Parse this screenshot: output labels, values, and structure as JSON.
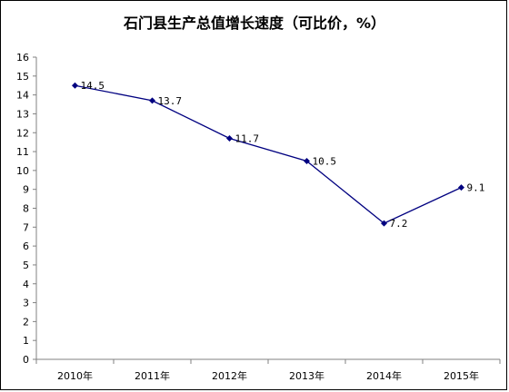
{
  "chart_data": {
    "type": "line",
    "title": "石门县生产总值增长速度（可比价，%）",
    "categories": [
      "2010年",
      "2011年",
      "2012年",
      "2013年",
      "2014年",
      "2015年"
    ],
    "series": [
      {
        "values": [
          14.5,
          13.7,
          11.7,
          10.5,
          7.2,
          9.1
        ]
      }
    ],
    "data_labels": [
      "14.5",
      "13.7",
      "11.7",
      "10.5",
      "7.2",
      "9.1"
    ],
    "ylim": [
      0,
      16
    ],
    "yticks": [
      "0",
      "1",
      "2",
      "3",
      "4",
      "5",
      "6",
      "7",
      "8",
      "9",
      "10",
      "11",
      "12",
      "13",
      "14",
      "15",
      "16"
    ],
    "xlabel": "",
    "ylabel": "",
    "grid": false,
    "legend": "none",
    "colors": {
      "line": "#000080",
      "marker": "#000080",
      "axis": "#808080",
      "text": "#000000"
    }
  }
}
